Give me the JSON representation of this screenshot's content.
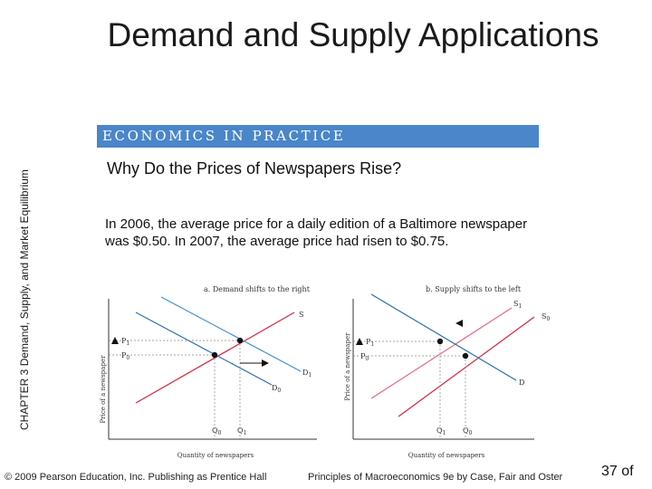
{
  "title": "Demand and Supply Applications",
  "side_chapter": "CHAPTER 3",
  "side_text": "Demand, Supply, and Market Equilibrium",
  "banner": "ECONOMICS IN PRACTICE",
  "question": "Why Do the Prices of Newspapers Rise?",
  "paragraph": "In 2006, the average price for a daily edition of a Baltimore newspaper was $0.50. In 2007, the average price had risen to $0.75.",
  "panel_a": {
    "title": "a. Demand shifts to the right",
    "ylabel": "Price of a newspaper",
    "xlabel": "Quantity of newspapers",
    "labels": {
      "S": "S",
      "D1": "D",
      "D1_sub": "1",
      "D0": "D",
      "D0_sub": "0",
      "P1": "P",
      "P1_sub": "1",
      "P0": "P",
      "P0_sub": "0",
      "Q0": "Q",
      "Q0_sub": "0",
      "Q1": "Q",
      "Q1_sub": "1"
    }
  },
  "panel_b": {
    "title": "b. Supply shifts to the left",
    "ylabel": "Price of a newspaper",
    "xlabel": "Quantity of newspapers",
    "labels": {
      "S1": "S",
      "S1_sub": "1",
      "S0": "S",
      "S0_sub": "0",
      "D": "D",
      "P1": "P",
      "P1_sub": "1",
      "P0": "P",
      "P0_sub": "0",
      "Q1": "Q",
      "Q1_sub": "1",
      "Q0": "Q",
      "Q0_sub": "0"
    }
  },
  "colors": {
    "banner": "#4a86c9",
    "demand_shift": "#3f8fd6",
    "demand_orig": "#2a6fb0",
    "supply_shift": "#e86a7e",
    "supply_orig": "#d9253f",
    "axis": "#333333"
  },
  "footer": {
    "copyright": "© 2009 Pearson Education, Inc. Publishing as Prentice Hall",
    "book": "Principles of Macroeconomics 9e by Case, Fair and Oster",
    "page": "37 of"
  }
}
